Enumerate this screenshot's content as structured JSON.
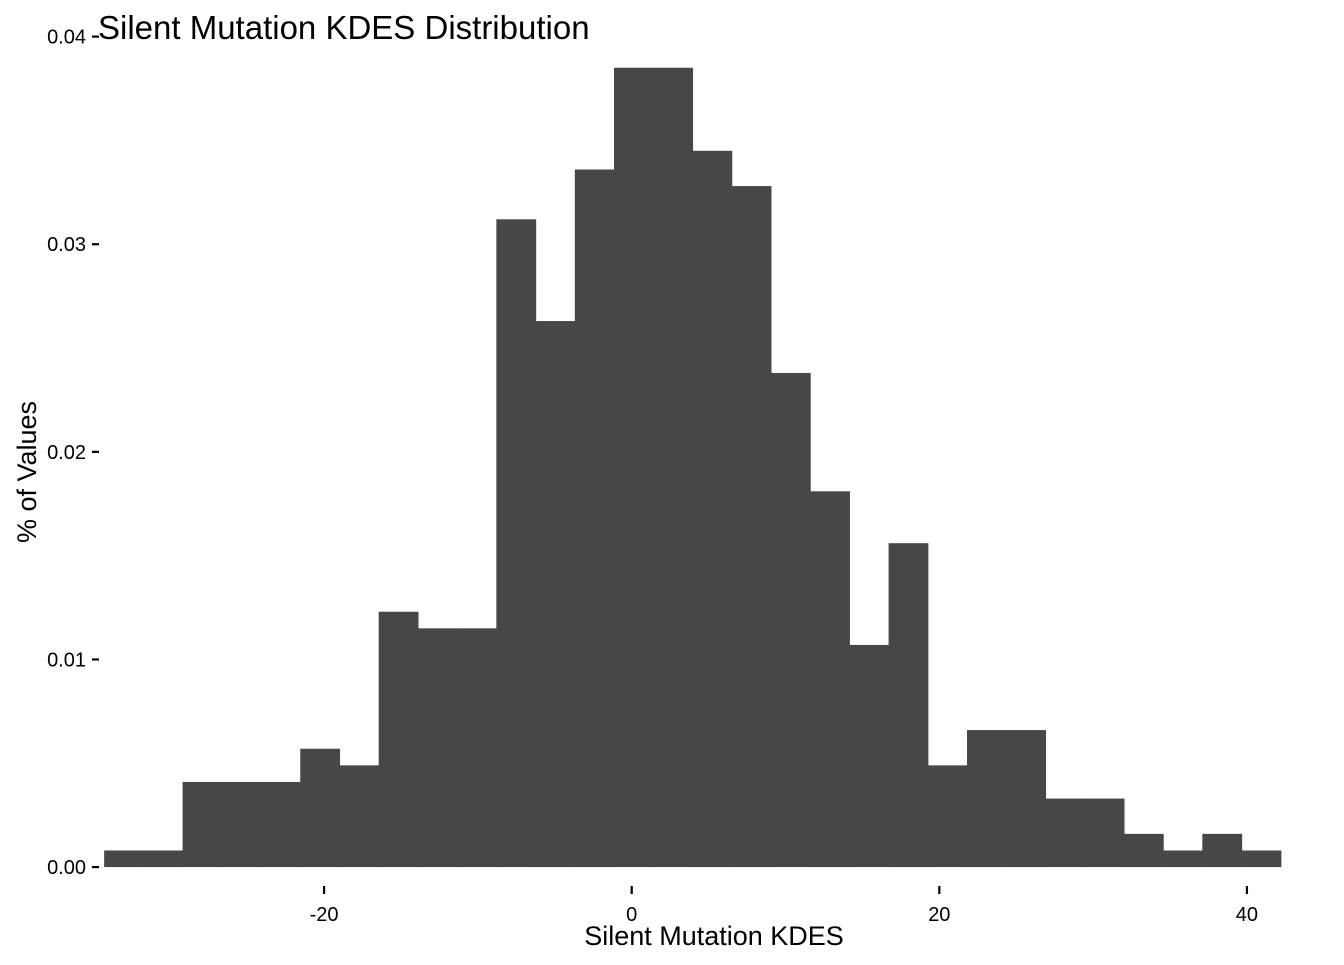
{
  "chart_data": {
    "type": "bar",
    "title": "Silent Mutation KDES Distribution",
    "xlabel": "Silent Mutation KDES",
    "ylabel": "% of Values",
    "xlim": [
      -34.7,
      42.8
    ],
    "ylim": [
      -0.0012,
      0.0408
    ],
    "x_ticks": [
      -20,
      0,
      20,
      40
    ],
    "x_tick_labels": [
      "-20",
      "0",
      "20",
      "40"
    ],
    "y_ticks": [
      0.0,
      0.01,
      0.02,
      0.03,
      0.04
    ],
    "y_tick_labels": [
      "0.00",
      "0.01",
      "0.02",
      "0.03",
      "0.04"
    ],
    "grid": false,
    "legend": "none",
    "bar_color": "#474747",
    "bin_width": 2.55,
    "bin_start": -34.3,
    "values": [
      0.0008,
      0.0008,
      0.0041,
      0.0041,
      0.0041,
      0.0057,
      0.0049,
      0.0123,
      0.0115,
      0.0115,
      0.0312,
      0.0263,
      0.0336,
      0.0385,
      0.0385,
      0.0345,
      0.0328,
      0.0238,
      0.0181,
      0.0107,
      0.0156,
      0.0049,
      0.0066,
      0.0066,
      0.0033,
      0.0033,
      0.0016,
      0.0008,
      0.0016,
      0.0008
    ]
  }
}
